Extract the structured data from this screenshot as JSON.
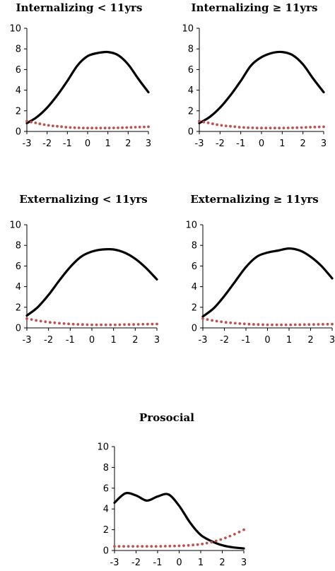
{
  "chart_data": [
    {
      "type": "line",
      "title": "Internalizing < 11yrs",
      "x_ticks": [
        "-3",
        "-2",
        "-1",
        "0",
        "1",
        "2",
        "3"
      ],
      "y_ticks": [
        "0",
        "2",
        "4",
        "6",
        "8",
        "10"
      ],
      "xlim": [
        -3,
        3
      ],
      "ylim": [
        0,
        10
      ],
      "series": [
        {
          "style": "solid",
          "color": "#000000",
          "x": [
            -3,
            -2.5,
            -2,
            -1.5,
            -1,
            -0.5,
            0,
            0.5,
            1,
            1.5,
            2,
            2.5,
            3
          ],
          "y": [
            0.8,
            1.4,
            2.3,
            3.5,
            4.9,
            6.4,
            7.3,
            7.6,
            7.7,
            7.4,
            6.5,
            5.1,
            3.8
          ]
        },
        {
          "style": "dotted",
          "color": "#c0504d",
          "x": [
            -3,
            -2.5,
            -2,
            -1.5,
            -1,
            -0.5,
            0,
            0.5,
            1,
            1.5,
            2,
            2.5,
            3
          ],
          "y": [
            1.0,
            0.8,
            0.6,
            0.5,
            0.4,
            0.35,
            0.33,
            0.33,
            0.33,
            0.35,
            0.38,
            0.42,
            0.45
          ]
        }
      ]
    },
    {
      "type": "line",
      "title": "Internalizing ≥  11yrs",
      "x_ticks": [
        "-3",
        "-2",
        "-1",
        "0",
        "1",
        "2",
        "3"
      ],
      "y_ticks": [
        "0",
        "2",
        "4",
        "6",
        "8",
        "10"
      ],
      "xlim": [
        -3,
        3
      ],
      "ylim": [
        0,
        10
      ],
      "series": [
        {
          "style": "solid",
          "color": "#000000",
          "x": [
            -3,
            -2.5,
            -2,
            -1.5,
            -1,
            -0.5,
            0,
            0.5,
            1,
            1.5,
            2,
            2.5,
            3
          ],
          "y": [
            0.8,
            1.4,
            2.3,
            3.5,
            4.9,
            6.4,
            7.2,
            7.6,
            7.7,
            7.4,
            6.5,
            5.1,
            3.8
          ]
        },
        {
          "style": "dotted",
          "color": "#c0504d",
          "x": [
            -3,
            -2.5,
            -2,
            -1.5,
            -1,
            -0.5,
            0,
            0.5,
            1,
            1.5,
            2,
            2.5,
            3
          ],
          "y": [
            1.0,
            0.8,
            0.6,
            0.5,
            0.4,
            0.35,
            0.33,
            0.33,
            0.33,
            0.35,
            0.38,
            0.42,
            0.45
          ]
        }
      ]
    },
    {
      "type": "line",
      "title": "Externalizing < 11yrs",
      "x_ticks": [
        "-3",
        "-2",
        "-1",
        "0",
        "1",
        "2",
        "3"
      ],
      "y_ticks": [
        "0",
        "2",
        "4",
        "6",
        "8",
        "10"
      ],
      "xlim": [
        -3,
        3
      ],
      "ylim": [
        0,
        10
      ],
      "series": [
        {
          "style": "solid",
          "color": "#000000",
          "x": [
            -3,
            -2.5,
            -2,
            -1.5,
            -1,
            -0.5,
            0,
            0.5,
            1,
            1.5,
            2,
            2.5,
            3
          ],
          "y": [
            1.2,
            2.0,
            3.2,
            4.6,
            5.9,
            6.9,
            7.4,
            7.6,
            7.6,
            7.3,
            6.7,
            5.8,
            4.7
          ]
        },
        {
          "style": "dotted",
          "color": "#c0504d",
          "x": [
            -3,
            -2.5,
            -2,
            -1.5,
            -1,
            -0.5,
            0,
            0.5,
            1,
            1.5,
            2,
            2.5,
            3
          ],
          "y": [
            0.9,
            0.7,
            0.55,
            0.45,
            0.38,
            0.33,
            0.3,
            0.3,
            0.3,
            0.32,
            0.34,
            0.36,
            0.38
          ]
        }
      ]
    },
    {
      "type": "line",
      "title": "Externalizing ≥  11yrs",
      "x_ticks": [
        "-3",
        "-2",
        "-1",
        "0",
        "1",
        "2",
        "3"
      ],
      "y_ticks": [
        "0",
        "2",
        "4",
        "6",
        "8",
        "10"
      ],
      "xlim": [
        -3,
        3
      ],
      "ylim": [
        0,
        10
      ],
      "series": [
        {
          "style": "solid",
          "color": "#000000",
          "x": [
            -3,
            -2.5,
            -2,
            -1.5,
            -1,
            -0.5,
            0,
            0.5,
            1,
            1.5,
            2,
            2.5,
            3
          ],
          "y": [
            1.1,
            1.9,
            3.1,
            4.5,
            5.9,
            6.9,
            7.3,
            7.5,
            7.7,
            7.5,
            6.9,
            6.0,
            4.8
          ]
        },
        {
          "style": "dotted",
          "color": "#c0504d",
          "x": [
            -3,
            -2.5,
            -2,
            -1.5,
            -1,
            -0.5,
            0,
            0.5,
            1,
            1.5,
            2,
            2.5,
            3
          ],
          "y": [
            0.9,
            0.7,
            0.55,
            0.45,
            0.38,
            0.33,
            0.3,
            0.3,
            0.3,
            0.31,
            0.33,
            0.35,
            0.36
          ]
        }
      ]
    },
    {
      "type": "line",
      "title": "Prosocial",
      "x_ticks": [
        "-3",
        "-2",
        "-1",
        "0",
        "1",
        "2",
        "3"
      ],
      "y_ticks": [
        "0",
        "2",
        "4",
        "6",
        "8",
        "10"
      ],
      "xlim": [
        -3,
        3
      ],
      "ylim": [
        0,
        10
      ],
      "series": [
        {
          "style": "solid",
          "color": "#000000",
          "x": [
            -3,
            -2.5,
            -2,
            -1.5,
            -1,
            -0.5,
            0,
            0.5,
            1,
            1.5,
            2,
            2.5,
            3
          ],
          "y": [
            4.6,
            5.5,
            5.3,
            4.8,
            5.2,
            5.4,
            4.3,
            2.7,
            1.5,
            0.9,
            0.5,
            0.3,
            0.2
          ]
        },
        {
          "style": "dotted",
          "color": "#c0504d",
          "x": [
            -3,
            -2.5,
            -2,
            -1.5,
            -1,
            -0.5,
            0,
            0.5,
            1,
            1.5,
            2,
            2.5,
            3
          ],
          "y": [
            0.4,
            0.4,
            0.4,
            0.4,
            0.4,
            0.42,
            0.45,
            0.5,
            0.6,
            0.8,
            1.1,
            1.5,
            2.0
          ]
        }
      ]
    }
  ]
}
